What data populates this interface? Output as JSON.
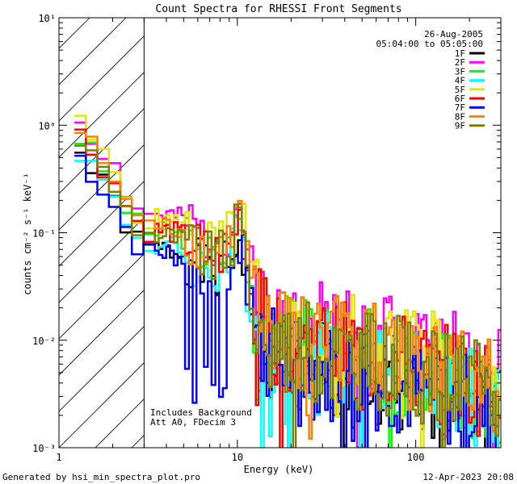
{
  "chart_data": {
    "type": "line",
    "title": "Count Spectra for RHESSI Front Segments",
    "xlabel": "Energy (keV)",
    "ylabel": "counts cm⁻² s⁻¹ keV⁻¹",
    "xscale": "log",
    "yscale": "log",
    "xlim": [
      1,
      300
    ],
    "ylim": [
      0.001,
      10
    ],
    "x_tick_labels": [
      {
        "value": 1,
        "label": "1"
      },
      {
        "value": 10,
        "label": "10"
      },
      {
        "value": 100,
        "label": "100"
      }
    ],
    "y_tick_labels": [
      {
        "value": 0.001,
        "label": "10⁻³"
      },
      {
        "value": 0.01,
        "label": "10⁻²"
      },
      {
        "value": 0.1,
        "label": "10⁻¹"
      },
      {
        "value": 1,
        "label": "10⁰"
      },
      {
        "value": 10,
        "label": "10¹"
      }
    ],
    "hatched_region": {
      "x_from": 1,
      "x_to": 3
    },
    "date": "26-Aug-2005",
    "time_range": "05:04:00 to 05:05:00",
    "legend_position": "top-right",
    "annotations": [
      "Includes Background",
      "Att A0, FDecim 3"
    ],
    "series": [
      {
        "name": "1F",
        "color": "#000000",
        "bias": 0.7,
        "seed": 1
      },
      {
        "name": "2F",
        "color": "#ff00ff",
        "bias": 1.45,
        "seed": 2
      },
      {
        "name": "3F",
        "color": "#00ff00",
        "bias": 1.0,
        "seed": 3
      },
      {
        "name": "4F",
        "color": "#00ffff",
        "bias": 0.75,
        "seed": 4
      },
      {
        "name": "5F",
        "color": "#e6e600",
        "bias": 1.3,
        "seed": 5
      },
      {
        "name": "6F",
        "color": "#ff0000",
        "bias": 1.05,
        "seed": 6
      },
      {
        "name": "7F",
        "color": "#0000ff",
        "bias": 0.65,
        "seed": 7
      },
      {
        "name": "8F",
        "color": "#ff8000",
        "bias": 1.15,
        "seed": 8
      },
      {
        "name": "9F",
        "color": "#808000",
        "bias": 0.95,
        "seed": 9
      }
    ],
    "base_spectrum": {
      "energy_keV": [
        1.3,
        1.6,
        2.0,
        2.5,
        3.0,
        3.5,
        4.0,
        5.0,
        6.0,
        7.0,
        8.0,
        9.0,
        10.0,
        10.5,
        11.5,
        13,
        16,
        20,
        30,
        50,
        80,
        120,
        200,
        290
      ],
      "counts": [
        0.8,
        0.5,
        0.3,
        0.15,
        0.1,
        0.1,
        0.1,
        0.09,
        0.07,
        0.06,
        0.06,
        0.07,
        0.12,
        0.14,
        0.04,
        0.016,
        0.011,
        0.009,
        0.008,
        0.007,
        0.006,
        0.005,
        0.004,
        0.003
      ]
    }
  },
  "footer": {
    "left": "Generated by hsi_min_spectra_plot.pro",
    "right": "12-Apr-2023 20:08"
  }
}
